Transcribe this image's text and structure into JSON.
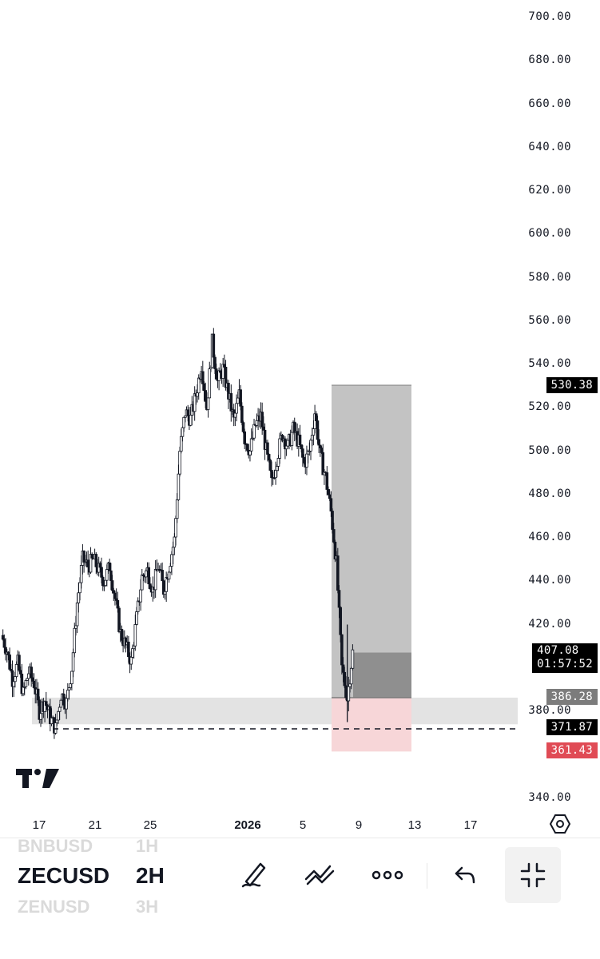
{
  "chart_data": {
    "type": "candlestick",
    "symbol": "ZECUSD",
    "interval": "2H",
    "y_ticks": [
      "700.00",
      "680.00",
      "660.00",
      "640.00",
      "620.00",
      "600.00",
      "580.00",
      "560.00",
      "540.00",
      "520.00",
      "500.00",
      "480.00",
      "460.00",
      "440.00",
      "420.00",
      "380.00",
      "340.00"
    ],
    "x_ticks": [
      {
        "label": "17",
        "bold": false
      },
      {
        "label": "21",
        "bold": false
      },
      {
        "label": "25",
        "bold": false
      },
      {
        "label": "2026",
        "bold": true
      },
      {
        "label": "5",
        "bold": false
      },
      {
        "label": "9",
        "bold": false
      },
      {
        "label": "13",
        "bold": false
      },
      {
        "label": "17",
        "bold": false
      }
    ],
    "price_path": [
      [
        0,
        415
      ],
      [
        1,
        408
      ],
      [
        2,
        395
      ],
      [
        3,
        402
      ],
      [
        4,
        388
      ],
      [
        5,
        398
      ],
      [
        6,
        393
      ],
      [
        7,
        380
      ],
      [
        8,
        385
      ],
      [
        9,
        377
      ],
      [
        10,
        372
      ],
      [
        11,
        388
      ],
      [
        12,
        384
      ],
      [
        13,
        400
      ],
      [
        14,
        430
      ],
      [
        15,
        450
      ],
      [
        16,
        447
      ],
      [
        17,
        450
      ],
      [
        18,
        445
      ],
      [
        19,
        440
      ],
      [
        20,
        447
      ],
      [
        21,
        432
      ],
      [
        22,
        416
      ],
      [
        23,
        410
      ],
      [
        24,
        403
      ],
      [
        25,
        423
      ],
      [
        26,
        442
      ],
      [
        27,
        445
      ],
      [
        28,
        436
      ],
      [
        29,
        447
      ],
      [
        30,
        436
      ],
      [
        31,
        447
      ],
      [
        32,
        459
      ],
      [
        33,
        500
      ],
      [
        34,
        518
      ],
      [
        35,
        515
      ],
      [
        36,
        526
      ],
      [
        37,
        540
      ],
      [
        38,
        520
      ],
      [
        39,
        550
      ],
      [
        40,
        532
      ],
      [
        41,
        538
      ],
      [
        42,
        526
      ],
      [
        43,
        514
      ],
      [
        44,
        526
      ],
      [
        45,
        506
      ],
      [
        46,
        500
      ],
      [
        47,
        512
      ],
      [
        48,
        516
      ],
      [
        49,
        500
      ],
      [
        50,
        485
      ],
      [
        51,
        497
      ],
      [
        52,
        508
      ],
      [
        53,
        502
      ],
      [
        54,
        510
      ],
      [
        55,
        504
      ],
      [
        56,
        494
      ],
      [
        57,
        500
      ],
      [
        58,
        518
      ],
      [
        59,
        498
      ],
      [
        60,
        488
      ],
      [
        61,
        472
      ],
      [
        62,
        448
      ],
      [
        63,
        400
      ],
      [
        64,
        386
      ],
      [
        65,
        407.08
      ]
    ],
    "reference_lines": [
      {
        "price": 371.87,
        "style": "dashed"
      }
    ],
    "position": {
      "direction": "long",
      "entry": 386.28,
      "target": 530.38,
      "stop": 361.43,
      "current": 407.08
    },
    "support_zone": [
      374,
      386.28
    ],
    "colors": {
      "candle": "#131722",
      "profit_zone": "#c3c3c3",
      "profit_filled": "#8f8f8f",
      "loss_zone": "#f7d6d8",
      "support_zone": "#e3e3e3",
      "tag_dark": "#000000",
      "tag_entry": "#7c7c7c",
      "tag_stop": "#e04b55"
    }
  },
  "price_tags": {
    "target": "530.38",
    "current": "407.08",
    "countdown": "01:57:52",
    "entry": "386.28",
    "dashed": "371.87",
    "stop": "361.43"
  },
  "toolbar": {
    "symbol_prev": "BNBUSD",
    "symbol": "ZECUSD",
    "symbol_next": "ZENUSD",
    "tf_prev": "1H",
    "tf": "2H",
    "tf_next": "3H",
    "icons": [
      "brush-icon",
      "trend-line-icon",
      "more-icon",
      "undo-icon",
      "collapse-icon"
    ]
  }
}
